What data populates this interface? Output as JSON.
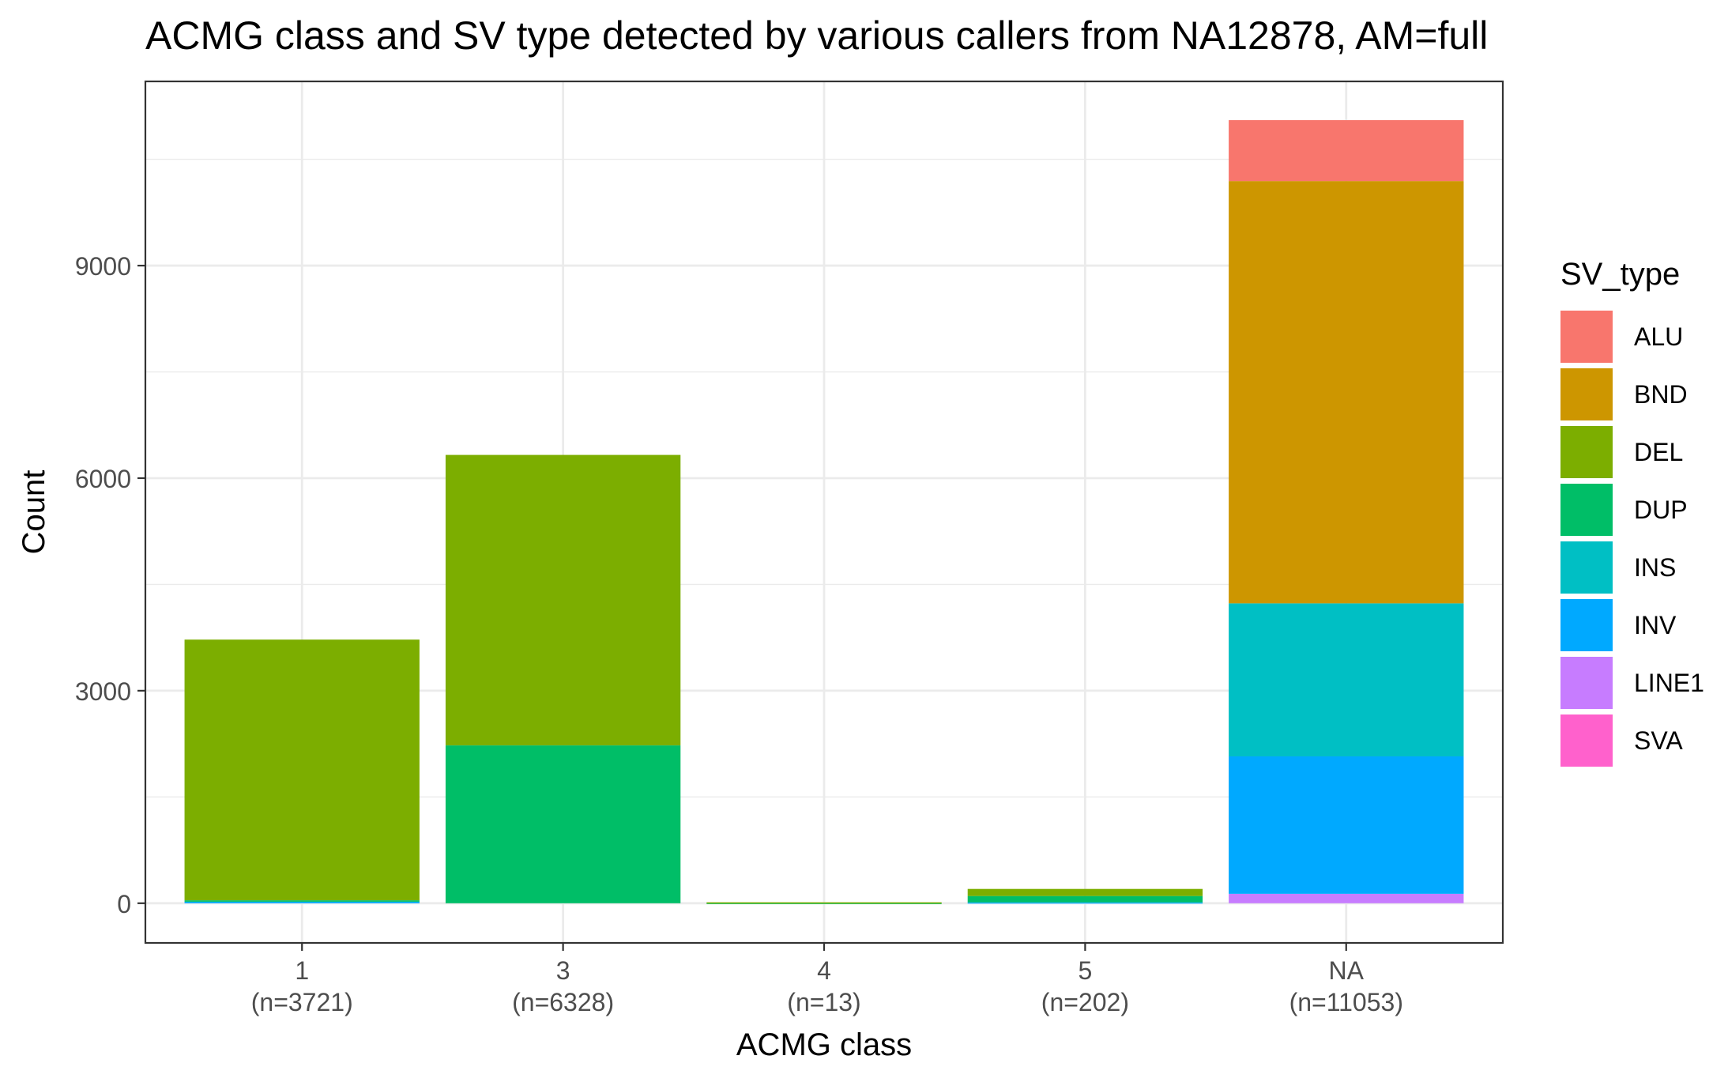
{
  "chart_data": {
    "type": "bar",
    "stacked": true,
    "title": "ACMG class and SV type detected by various callers from NA12878, AM=full",
    "xlabel": "ACMG class",
    "ylabel": "Count",
    "ylim": [
      -560,
      11600
    ],
    "yticks": [
      0,
      3000,
      6000,
      9000
    ],
    "grid": true,
    "legend_position": "right",
    "categories": [
      "1",
      "3",
      "4",
      "5",
      "NA"
    ],
    "category_counts": [
      "(n=3721)",
      "(n=6328)",
      "(n=13)",
      "(n=202)",
      "(n=11053)"
    ],
    "legend": {
      "title": "SV_type",
      "entries": [
        "ALU",
        "BND",
        "DEL",
        "DUP",
        "INS",
        "INV",
        "LINE1",
        "SVA"
      ]
    },
    "colors": {
      "ALU": "#F8766D",
      "BND": "#CD9600",
      "DEL": "#7CAE00",
      "DUP": "#00BE67",
      "INS": "#00BFC4",
      "INV": "#00A9FF",
      "LINE1": "#C77CFF",
      "SVA": "#FF61CC"
    },
    "series": [
      {
        "name": "ALU",
        "values": [
          0,
          0,
          0,
          0,
          860
        ]
      },
      {
        "name": "BND",
        "values": [
          0,
          0,
          0,
          0,
          5960
        ]
      },
      {
        "name": "DEL",
        "values": [
          3680,
          4100,
          8,
          100,
          0
        ]
      },
      {
        "name": "DUP",
        "values": [
          20,
          2228,
          5,
          90,
          0
        ]
      },
      {
        "name": "INS",
        "values": [
          0,
          0,
          0,
          0,
          2160
        ]
      },
      {
        "name": "INV",
        "values": [
          21,
          0,
          0,
          12,
          1940
        ]
      },
      {
        "name": "LINE1",
        "values": [
          0,
          0,
          0,
          0,
          133
        ]
      },
      {
        "name": "SVA",
        "values": [
          0,
          0,
          0,
          0,
          0
        ]
      }
    ]
  }
}
